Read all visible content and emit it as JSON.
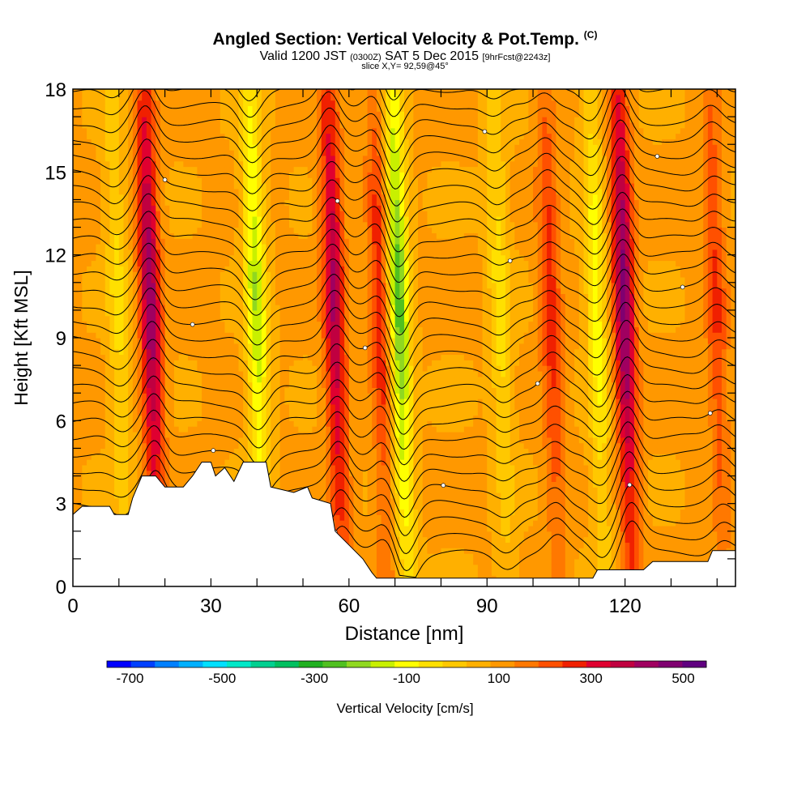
{
  "header": {
    "title": "Angled Section: Vertical Velocity & Pot.Temp.",
    "title_unit": "(C)",
    "valid_prefix": "Valid 1200 JST",
    "valid_utc": "(0300Z)",
    "valid_date": "SAT 5 Dec 2015",
    "forecast": "[9hrFcst@2243z]",
    "slice": "slice X,Y= 92,59@45°"
  },
  "colors": {
    "ramp": [
      "#0000ff",
      "#0040ff",
      "#0080ff",
      "#00b0ff",
      "#00e0ff",
      "#00e8c8",
      "#00d090",
      "#00c060",
      "#20b020",
      "#50c020",
      "#90d820",
      "#c8f000",
      "#ffff00",
      "#ffe000",
      "#ffc800",
      "#ffb000",
      "#ff9800",
      "#ff7800",
      "#ff5000",
      "#f02000",
      "#e00030",
      "#c00040",
      "#a00060",
      "#800070",
      "#600080"
    ],
    "terrain": "#ffffff",
    "contour": "#000000"
  },
  "chart_data": {
    "type": "heatmap",
    "xlabel": "Distance [nm]",
    "ylabel": "Height [Kft MSL]",
    "xlim": [
      0,
      144
    ],
    "ylim": [
      0,
      18
    ],
    "xticks": [
      0,
      30,
      60,
      90,
      120
    ],
    "yticks": [
      0,
      3,
      6,
      9,
      12,
      15,
      18
    ],
    "colorbar": {
      "label": "Vertical Velocity [cm/s]",
      "ticks": [
        -700,
        -500,
        -300,
        -100,
        100,
        300,
        500
      ],
      "min": -750,
      "max": 550,
      "step": 50
    },
    "updraft_bands": [
      {
        "x": 17,
        "peak": 330
      },
      {
        "x": 57,
        "peak": 300
      },
      {
        "x": 67,
        "peak": 180
      },
      {
        "x": 104,
        "peak": 170
      },
      {
        "x": 120,
        "peak": 360
      },
      {
        "x": 140,
        "peak": 150
      }
    ],
    "downdraft_bands": [
      {
        "x": 10,
        "peak": -120
      },
      {
        "x": 40,
        "peak": -250
      },
      {
        "x": 71,
        "peak": -330
      },
      {
        "x": 93,
        "peak": -130
      },
      {
        "x": 114,
        "peak": -180
      }
    ],
    "terrain_profile": [
      [
        0,
        2.6
      ],
      [
        2,
        2.9
      ],
      [
        8,
        2.9
      ],
      [
        9,
        2.6
      ],
      [
        12,
        2.6
      ],
      [
        13,
        3.2
      ],
      [
        14,
        3.6
      ],
      [
        15,
        4.0
      ],
      [
        18,
        4.0
      ],
      [
        20,
        3.6
      ],
      [
        24,
        3.6
      ],
      [
        26,
        4.0
      ],
      [
        28,
        4.5
      ],
      [
        30,
        4.5
      ],
      [
        31,
        4.0
      ],
      [
        33,
        4.3
      ],
      [
        35,
        3.8
      ],
      [
        37,
        4.5
      ],
      [
        42,
        4.5
      ],
      [
        43,
        3.6
      ],
      [
        48,
        3.4
      ],
      [
        51,
        3.6
      ],
      [
        52,
        3.2
      ],
      [
        56,
        3.0
      ],
      [
        57,
        2.0
      ],
      [
        60,
        1.5
      ],
      [
        63,
        1.0
      ],
      [
        65,
        0.5
      ],
      [
        66,
        0.3
      ],
      [
        75,
        0.3
      ],
      [
        88,
        0.3
      ],
      [
        95,
        0.3
      ],
      [
        113,
        0.3
      ],
      [
        114,
        0.6
      ],
      [
        124,
        0.6
      ],
      [
        126,
        0.9
      ],
      [
        138,
        0.9
      ],
      [
        139,
        1.3
      ],
      [
        144,
        1.3
      ]
    ],
    "contour_interval_kft": 0.6,
    "theta_label_interval_kft": 1.2
  }
}
